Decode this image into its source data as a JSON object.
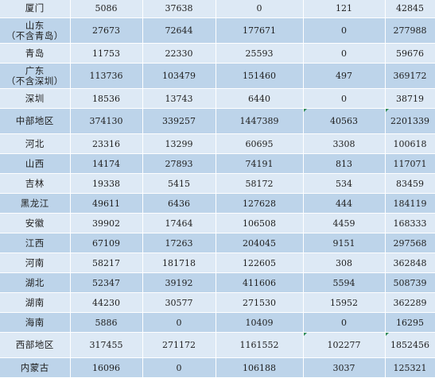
{
  "rows": [
    {
      "n1": "厦门",
      "n2": "",
      "v": [
        "5086",
        "37638",
        "0",
        "121",
        "42845"
      ],
      "style": "light",
      "h": "h1"
    },
    {
      "n1": "山东",
      "n2": "（不含青岛）",
      "v": [
        "27673",
        "72644",
        "177671",
        "0",
        "277988"
      ],
      "style": "blue",
      "h": "h2"
    },
    {
      "n1": "青岛",
      "n2": "",
      "v": [
        "11753",
        "22330",
        "25593",
        "0",
        "59676"
      ],
      "style": "light",
      "h": "h1"
    },
    {
      "n1": "广东",
      "n2": "（不含深圳）",
      "v": [
        "113736",
        "103479",
        "151460",
        "497",
        "369172"
      ],
      "style": "blue",
      "h": "h2"
    },
    {
      "n1": "深圳",
      "n2": "",
      "v": [
        "18536",
        "13743",
        "6440",
        "0",
        "38719"
      ],
      "style": "light",
      "h": "h1"
    },
    {
      "n1": "中部地区",
      "n2": "",
      "v": [
        "374130",
        "339257",
        "1447389",
        "40563",
        "2201339"
      ],
      "style": "blue",
      "h": "h2"
    },
    {
      "n1": "河北",
      "n2": "",
      "v": [
        "23316",
        "13299",
        "60695",
        "3308",
        "100618"
      ],
      "style": "light",
      "h": "h1"
    },
    {
      "n1": "山西",
      "n2": "",
      "v": [
        "14174",
        "27893",
        "74191",
        "813",
        "117071"
      ],
      "style": "blue",
      "h": "h1"
    },
    {
      "n1": "吉林",
      "n2": "",
      "v": [
        "19338",
        "5415",
        "58172",
        "534",
        "83459"
      ],
      "style": "light",
      "h": "h1"
    },
    {
      "n1": "黑龙江",
      "n2": "",
      "v": [
        "49611",
        "6436",
        "127628",
        "444",
        "184119"
      ],
      "style": "blue",
      "h": "h1"
    },
    {
      "n1": "安徽",
      "n2": "",
      "v": [
        "39902",
        "17464",
        "106508",
        "4459",
        "168333"
      ],
      "style": "light",
      "h": "h1"
    },
    {
      "n1": "江西",
      "n2": "",
      "v": [
        "67109",
        "17263",
        "204045",
        "9151",
        "297568"
      ],
      "style": "blue",
      "h": "h1"
    },
    {
      "n1": "河南",
      "n2": "",
      "v": [
        "58217",
        "181718",
        "122605",
        "308",
        "362848"
      ],
      "style": "light",
      "h": "h1"
    },
    {
      "n1": "湖北",
      "n2": "",
      "v": [
        "52347",
        "39192",
        "411606",
        "5594",
        "508739"
      ],
      "style": "blue",
      "h": "h1"
    },
    {
      "n1": "湖南",
      "n2": "",
      "v": [
        "44230",
        "30577",
        "271530",
        "15952",
        "362289"
      ],
      "style": "light",
      "h": "h1"
    },
    {
      "n1": "海南",
      "n2": "",
      "v": [
        "5886",
        "0",
        "10409",
        "0",
        "16295"
      ],
      "style": "blue",
      "h": "h1"
    },
    {
      "n1": "西部地区",
      "n2": "",
      "v": [
        "317455",
        "271172",
        "1161552",
        "102277",
        "1852456"
      ],
      "style": "light",
      "h": "h2"
    },
    {
      "n1": "内蒙古",
      "n2": "",
      "v": [
        "16096",
        "0",
        "106188",
        "3037",
        "125321"
      ],
      "style": "blue",
      "h": "h1"
    }
  ]
}
